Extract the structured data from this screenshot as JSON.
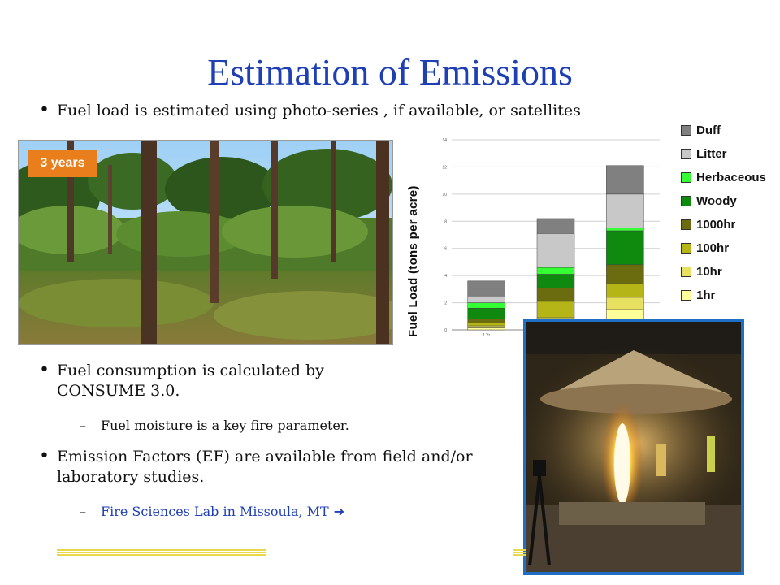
{
  "slide": {
    "title": "Estimation of Emissions",
    "bullet1": "Fuel load is estimated using photo-series , if available, or satellites",
    "bullet2": "Fuel consumption is calculated by CONSUME 3.0.",
    "sub1": "Fuel moisture is a key fire parameter.",
    "bullet3": "Emission Factors (EF) are available from field and/or laboratory studies.",
    "sub2": "Fire Sciences Lab in Missoula, MT",
    "bullet_glyph": "•",
    "dash_glyph": "–",
    "arrow_glyph": "➔"
  },
  "photo": {
    "badge": "3 years",
    "badge_color": "#e87f1c"
  },
  "chart_data": {
    "type": "bar",
    "stacked": true,
    "ylabel": "Fuel Load (tons per acre)",
    "ylim": [
      0,
      14
    ],
    "yticks": [
      0,
      2,
      4,
      6,
      8,
      10,
      12,
      14
    ],
    "grid": true,
    "legend_position": "right",
    "categories": [
      "1 Yr",
      "",
      ""
    ],
    "series": [
      {
        "name": "1hr",
        "color": "#ffff99",
        "values": [
          0.15,
          0.5,
          1.5
        ]
      },
      {
        "name": "10hr",
        "color": "#e8e060",
        "values": [
          0.15,
          0.4,
          0.9
        ]
      },
      {
        "name": "100hr",
        "color": "#b5b518",
        "values": [
          0.2,
          1.2,
          1.0
        ]
      },
      {
        "name": "1000hr",
        "color": "#6b6b10",
        "values": [
          0.3,
          1.0,
          1.4
        ]
      },
      {
        "name": "Woody",
        "color": "#0f8a0f",
        "values": [
          0.8,
          1.0,
          2.5
        ]
      },
      {
        "name": "Herbaceous",
        "color": "#33ff33",
        "values": [
          0.4,
          0.5,
          0.2
        ]
      },
      {
        "name": "Litter",
        "color": "#c8c8c8",
        "values": [
          0.5,
          2.5,
          2.5
        ]
      },
      {
        "name": "Duff",
        "color": "#808080",
        "values": [
          1.1,
          1.1,
          2.1
        ]
      }
    ]
  },
  "legend_order": [
    "Duff",
    "Litter",
    "Herbaceous",
    "Woody",
    "1000hr",
    "100hr",
    "10hr",
    "1hr"
  ],
  "colors": {
    "title": "#1f3fb4",
    "link": "#1f3fb4",
    "lab_frame": "#1f6fc4",
    "footer_line": "#e8d84a"
  }
}
